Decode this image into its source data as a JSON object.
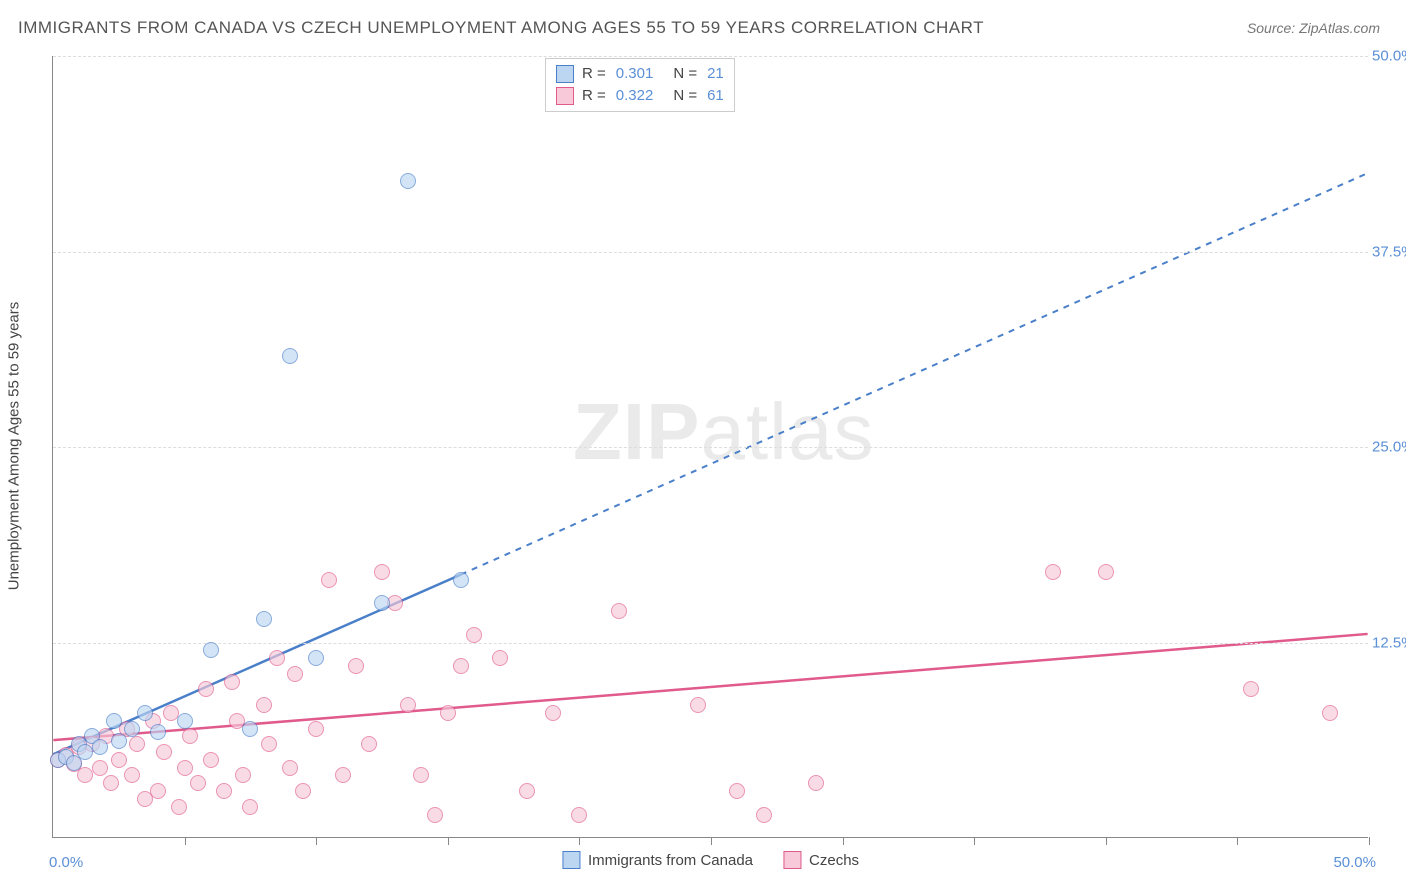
{
  "title": "IMMIGRANTS FROM CANADA VS CZECH UNEMPLOYMENT AMONG AGES 55 TO 59 YEARS CORRELATION CHART",
  "source_label": "Source: ",
  "source_value": "ZipAtlas.com",
  "y_axis_label": "Unemployment Among Ages 55 to 59 years",
  "watermark_bold": "ZIP",
  "watermark_light": "atlas",
  "chart": {
    "type": "scatter",
    "xlim": [
      0,
      50
    ],
    "ylim": [
      0,
      50
    ],
    "x_tick_positions": [
      0,
      5,
      10,
      15,
      20,
      25,
      30,
      35,
      40,
      45,
      50
    ],
    "x_labeled_ticks": {
      "0": "0.0%",
      "50": "50.0%"
    },
    "y_tick_positions": [
      12.5,
      25.0,
      37.5,
      50.0
    ],
    "y_tick_labels": [
      "12.5%",
      "25.0%",
      "37.5%",
      "50.0%"
    ],
    "grid_color": "#dddddd",
    "axis_color": "#888888",
    "background_color": "#ffffff",
    "tick_label_color": "#5b8fd6",
    "marker_radius": 8,
    "series": [
      {
        "name": "Immigrants from Canada",
        "short": "canada",
        "stroke": "#4a7fc9",
        "fill": "#bcd6f2",
        "fill_opacity": 0.65,
        "r_value": "0.301",
        "n_value": "21",
        "trend": {
          "x1": 0,
          "y1": 5.3,
          "x2": 15.5,
          "y2": 16.8,
          "extend_to_x": 50,
          "extend_to_y": 42.5
        },
        "points": [
          [
            0.2,
            5.0
          ],
          [
            0.5,
            5.2
          ],
          [
            0.8,
            4.8
          ],
          [
            1.0,
            6.0
          ],
          [
            1.2,
            5.5
          ],
          [
            1.5,
            6.5
          ],
          [
            1.8,
            5.8
          ],
          [
            2.3,
            7.5
          ],
          [
            2.5,
            6.2
          ],
          [
            3.0,
            7.0
          ],
          [
            3.5,
            8.0
          ],
          [
            4.0,
            6.8
          ],
          [
            5.0,
            7.5
          ],
          [
            6.0,
            12.0
          ],
          [
            7.5,
            7.0
          ],
          [
            8.0,
            14.0
          ],
          [
            9.0,
            30.8
          ],
          [
            10.0,
            11.5
          ],
          [
            12.5,
            15.0
          ],
          [
            13.5,
            42.0
          ],
          [
            15.5,
            16.5
          ]
        ]
      },
      {
        "name": "Czechs",
        "short": "czechs",
        "stroke": "#e05a8c",
        "fill": "#f7c9d9",
        "fill_opacity": 0.65,
        "r_value": "0.322",
        "n_value": "61",
        "trend": {
          "x1": 0,
          "y1": 6.2,
          "x2": 50,
          "y2": 13.0
        },
        "points": [
          [
            0.2,
            5.0
          ],
          [
            0.5,
            5.3
          ],
          [
            0.8,
            4.7
          ],
          [
            1.0,
            5.8
          ],
          [
            1.2,
            4.0
          ],
          [
            1.5,
            6.0
          ],
          [
            1.8,
            4.5
          ],
          [
            2.0,
            6.5
          ],
          [
            2.2,
            3.5
          ],
          [
            2.5,
            5.0
          ],
          [
            2.8,
            7.0
          ],
          [
            3.0,
            4.0
          ],
          [
            3.2,
            6.0
          ],
          [
            3.5,
            2.5
          ],
          [
            3.8,
            7.5
          ],
          [
            4.0,
            3.0
          ],
          [
            4.2,
            5.5
          ],
          [
            4.5,
            8.0
          ],
          [
            4.8,
            2.0
          ],
          [
            5.0,
            4.5
          ],
          [
            5.2,
            6.5
          ],
          [
            5.5,
            3.5
          ],
          [
            5.8,
            9.5
          ],
          [
            6.0,
            5.0
          ],
          [
            6.5,
            3.0
          ],
          [
            6.8,
            10.0
          ],
          [
            7.0,
            7.5
          ],
          [
            7.2,
            4.0
          ],
          [
            7.5,
            2.0
          ],
          [
            8.0,
            8.5
          ],
          [
            8.2,
            6.0
          ],
          [
            8.5,
            11.5
          ],
          [
            9.0,
            4.5
          ],
          [
            9.2,
            10.5
          ],
          [
            9.5,
            3.0
          ],
          [
            10.0,
            7.0
          ],
          [
            10.5,
            16.5
          ],
          [
            11.0,
            4.0
          ],
          [
            11.5,
            11.0
          ],
          [
            12.0,
            6.0
          ],
          [
            12.5,
            17.0
          ],
          [
            13.0,
            15.0
          ],
          [
            13.5,
            8.5
          ],
          [
            14.0,
            4.0
          ],
          [
            14.5,
            1.5
          ],
          [
            15.0,
            8.0
          ],
          [
            15.5,
            11.0
          ],
          [
            16.0,
            13.0
          ],
          [
            17.0,
            11.5
          ],
          [
            18.0,
            3.0
          ],
          [
            19.0,
            8.0
          ],
          [
            20.0,
            1.5
          ],
          [
            21.5,
            14.5
          ],
          [
            24.5,
            8.5
          ],
          [
            26.0,
            3.0
          ],
          [
            27.0,
            1.5
          ],
          [
            29.0,
            3.5
          ],
          [
            38.0,
            17.0
          ],
          [
            40.0,
            17.0
          ],
          [
            45.5,
            9.5
          ],
          [
            48.5,
            8.0
          ]
        ]
      }
    ]
  },
  "legend_bottom": [
    {
      "label": "Immigrants from Canada",
      "series": "canada"
    },
    {
      "label": "Czechs",
      "series": "czechs"
    }
  ]
}
